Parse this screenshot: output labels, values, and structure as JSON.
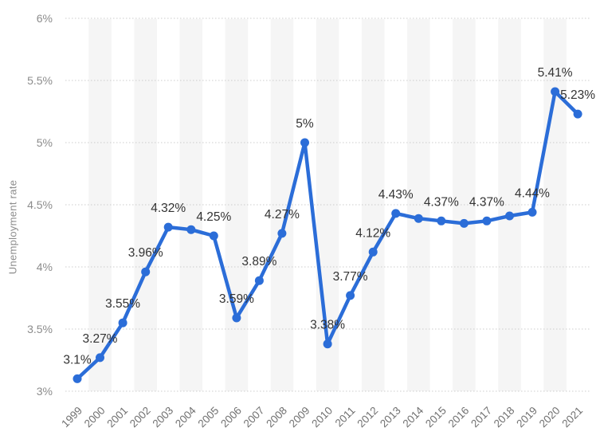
{
  "chart_data": {
    "type": "line",
    "title": "",
    "xlabel": "",
    "ylabel": "Unemployment rate",
    "x": [
      "1999",
      "2000",
      "2001",
      "2002",
      "2003",
      "2004",
      "2005",
      "2006",
      "2007",
      "2008",
      "2009",
      "2010",
      "2011",
      "2012",
      "2013",
      "2014",
      "2015",
      "2016",
      "2017",
      "2018",
      "2019",
      "2020",
      "2021"
    ],
    "values": [
      3.1,
      3.27,
      3.55,
      3.96,
      4.32,
      4.3,
      4.25,
      3.59,
      3.89,
      4.27,
      5.0,
      3.38,
      3.77,
      4.12,
      4.43,
      4.39,
      4.37,
      4.35,
      4.37,
      4.41,
      4.44,
      5.41,
      5.23
    ],
    "point_labels": [
      "3.1%",
      "3.27%",
      "3.55%",
      "3.96%",
      "4.32%",
      "",
      "4.25%",
      "3.59%",
      "3.89%",
      "4.27%",
      "5%",
      "3.38%",
      "3.77%",
      "4.12%",
      "4.43%",
      "",
      "4.37%",
      "",
      "4.37%",
      "",
      "4.44%",
      "5.41%",
      "5.23%"
    ],
    "y_ticks": [
      {
        "value": 3,
        "label": "3%"
      },
      {
        "value": 3.5,
        "label": "3.5%"
      },
      {
        "value": 4,
        "label": "4%"
      },
      {
        "value": 4.5,
        "label": "4.5%"
      },
      {
        "value": 5,
        "label": "5%"
      },
      {
        "value": 5.5,
        "label": "5.5%"
      },
      {
        "value": 6,
        "label": "6%"
      }
    ],
    "ylim": [
      3,
      6
    ],
    "grid": "horizontal-dotted",
    "legend": "none",
    "band_pattern": "alternating columns, shaded on even years",
    "colors": {
      "line": "#2b6dd8",
      "marker": "#2b6dd8",
      "band": "#f5f5f5",
      "grid": "#cccccc",
      "y_axis_text": "#8c8c8c",
      "x_axis_text": "#707070",
      "data_label": "#333333",
      "background": "#ffffff"
    }
  }
}
